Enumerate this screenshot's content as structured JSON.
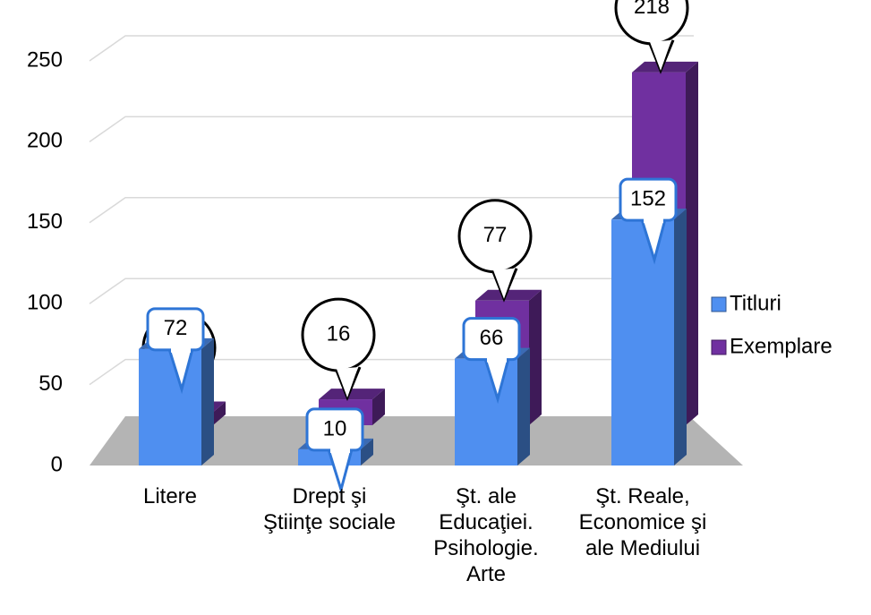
{
  "chart_data": {
    "type": "bar3d",
    "categories": [
      "Litere",
      "Drept şi Ştiinţe sociale",
      "Şt. ale Educaţiei. Psihologie. Arte",
      "Şt. Reale, Economice şi ale Mediului"
    ],
    "series": [
      {
        "name": "Titluri",
        "color": "#4f8ff0",
        "values": [
          72,
          10,
          66,
          152
        ]
      },
      {
        "name": "Exemplare",
        "color": "#7030a0",
        "values": [
          8,
          16,
          77,
          218
        ]
      }
    ],
    "ylim": [
      0,
      250
    ],
    "yticks": [
      0,
      50,
      100,
      150,
      200,
      250
    ],
    "grid": true,
    "legend": "right"
  }
}
